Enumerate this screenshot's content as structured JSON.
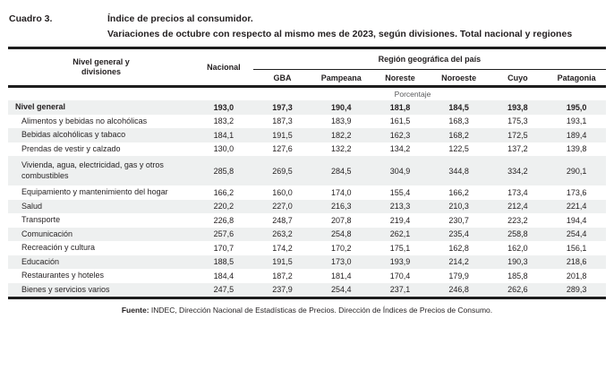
{
  "header": {
    "label": "Cuadro 3.",
    "title_line1": "Índice de precios al consumidor.",
    "title_line2": "Variaciones de octubre con respecto al mismo mes de 2023, según divisiones. Total nacional y regiones"
  },
  "table": {
    "first_col_header_line1": "Nivel general y",
    "first_col_header_line2": "divisiones",
    "nacional_header": "Nacional",
    "region_group_header": "Región geográfica del país",
    "region_headers": [
      "GBA",
      "Pampeana",
      "Noreste",
      "Noroeste",
      "Cuyo",
      "Patagonia"
    ],
    "unit_label": "Porcentaje",
    "stripe_color": "#eef0f0",
    "rule_color": "#1e1e1e",
    "rows": [
      {
        "name": "Nivel general",
        "values": [
          "193,0",
          "197,3",
          "190,4",
          "181,8",
          "184,5",
          "193,8",
          "195,0"
        ]
      },
      {
        "name": "Alimentos y bebidas no alcohólicas",
        "values": [
          "183,2",
          "187,3",
          "183,9",
          "161,5",
          "168,3",
          "175,3",
          "193,1"
        ]
      },
      {
        "name": "Bebidas alcohólicas y tabaco",
        "values": [
          "184,1",
          "191,5",
          "182,2",
          "162,3",
          "168,2",
          "172,5",
          "189,4"
        ]
      },
      {
        "name": "Prendas de vestir y calzado",
        "values": [
          "130,0",
          "127,6",
          "132,2",
          "134,2",
          "122,5",
          "137,2",
          "139,8"
        ]
      },
      {
        "name": "Vivienda, agua, electricidad, gas y otros combustibles",
        "values": [
          "285,8",
          "269,5",
          "284,5",
          "304,9",
          "344,8",
          "334,2",
          "290,1"
        ]
      },
      {
        "name": "Equipamiento y mantenimiento del hogar",
        "values": [
          "166,2",
          "160,0",
          "174,0",
          "155,4",
          "166,2",
          "173,4",
          "173,6"
        ]
      },
      {
        "name": "Salud",
        "values": [
          "220,2",
          "227,0",
          "216,3",
          "213,3",
          "210,3",
          "212,4",
          "221,4"
        ]
      },
      {
        "name": "Transporte",
        "values": [
          "226,8",
          "248,7",
          "207,8",
          "219,4",
          "230,7",
          "223,2",
          "194,4"
        ]
      },
      {
        "name": "Comunicación",
        "values": [
          "257,6",
          "263,2",
          "254,8",
          "262,1",
          "235,4",
          "258,8",
          "254,4"
        ]
      },
      {
        "name": "Recreación y cultura",
        "values": [
          "170,7",
          "174,2",
          "170,2",
          "175,1",
          "162,8",
          "162,0",
          "156,1"
        ]
      },
      {
        "name": "Educación",
        "values": [
          "188,5",
          "191,5",
          "173,0",
          "193,9",
          "214,2",
          "190,3",
          "218,6"
        ]
      },
      {
        "name": "Restaurantes y hoteles",
        "values": [
          "184,4",
          "187,2",
          "181,4",
          "170,4",
          "179,9",
          "185,8",
          "201,8"
        ]
      },
      {
        "name": "Bienes y servicios varios",
        "values": [
          "247,5",
          "237,9",
          "254,4",
          "237,1",
          "246,8",
          "262,6",
          "289,3"
        ]
      }
    ]
  },
  "footer": {
    "source_label": "Fuente:",
    "source_text": " INDEC, Dirección Nacional de Estadísticas de Precios. Dirección de Índices de Precios de Consumo."
  }
}
